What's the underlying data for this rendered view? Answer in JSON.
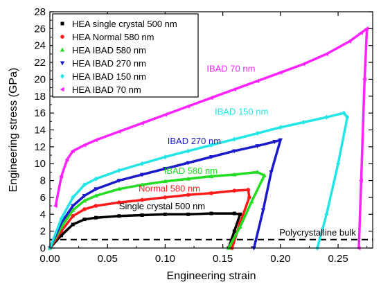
{
  "chart_data": {
    "type": "line",
    "xlabel": "Engineering strain",
    "ylabel": "Engineering stress (GPa)",
    "xlim": [
      0,
      0.28
    ],
    "ylim": [
      0,
      28
    ],
    "xticks": [
      0.0,
      0.05,
      0.1,
      0.15,
      0.2,
      0.25
    ],
    "xtick_labels": [
      "0.00",
      "0.05",
      "0.10",
      "0.15",
      "0.20",
      "0.25"
    ],
    "yticks": [
      0,
      2,
      4,
      6,
      8,
      10,
      12,
      14,
      16,
      18,
      20,
      22,
      24,
      26,
      28
    ],
    "ytick_labels": [
      "0",
      "2",
      "4",
      "6",
      "8",
      "10",
      "12",
      "14",
      "16",
      "18",
      "20",
      "22",
      "24",
      "26",
      "28"
    ],
    "legend_position": "top-left",
    "series": [
      {
        "name": "HEA single crystal 500 nm",
        "color": "#000000",
        "marker": "square",
        "annotation": "Single crystal 500 nm",
        "x": [
          0.0,
          0.01,
          0.02,
          0.03,
          0.04,
          0.06,
          0.08,
          0.1,
          0.12,
          0.14,
          0.16,
          0.165,
          0.16,
          0.155
        ],
        "y": [
          0.0,
          1.5,
          2.8,
          3.4,
          3.6,
          3.8,
          3.9,
          4.0,
          4.0,
          4.1,
          4.1,
          4.0,
          2.0,
          0.0
        ]
      },
      {
        "name": "HEA Normal 580 nm",
        "color": "#ff1a1a",
        "marker": "circle",
        "annotation": "Normal 580 nm",
        "x": [
          0.0,
          0.01,
          0.02,
          0.03,
          0.04,
          0.06,
          0.08,
          0.1,
          0.12,
          0.14,
          0.16,
          0.172,
          0.173,
          0.165,
          0.158
        ],
        "y": [
          0.0,
          2.0,
          3.8,
          4.6,
          5.0,
          5.4,
          5.7,
          6.0,
          6.3,
          6.5,
          6.8,
          6.9,
          6.0,
          3.0,
          0.0
        ]
      },
      {
        "name": "HEA IBAD 580 nm",
        "color": "#22dd22",
        "marker": "triangle-up",
        "annotation": "IBAD 580 nm",
        "x": [
          0.0,
          0.01,
          0.02,
          0.03,
          0.04,
          0.06,
          0.08,
          0.1,
          0.12,
          0.14,
          0.16,
          0.18,
          0.186,
          0.175,
          0.165,
          0.155
        ],
        "y": [
          0.0,
          2.5,
          4.5,
          5.6,
          6.2,
          7.0,
          7.5,
          7.9,
          8.2,
          8.5,
          8.7,
          9.0,
          8.6,
          5.5,
          2.5,
          0.0
        ]
      },
      {
        "name": "HEA IBAD 270 nm",
        "color": "#1a1acc",
        "marker": "triangle-down",
        "annotation": "IBAD 270 nm",
        "x": [
          0.0,
          0.01,
          0.02,
          0.03,
          0.04,
          0.06,
          0.08,
          0.1,
          0.12,
          0.14,
          0.16,
          0.18,
          0.195,
          0.2,
          0.192,
          0.185,
          0.177
        ],
        "y": [
          0.0,
          3.0,
          5.0,
          6.2,
          7.0,
          8.0,
          8.7,
          9.4,
          10.1,
          10.8,
          11.5,
          12.1,
          12.6,
          12.8,
          9.0,
          4.5,
          0.0
        ]
      },
      {
        "name": "HEA IBAD 150 nm",
        "color": "#22e5e5",
        "marker": "diamond",
        "annotation": "IBAD 150 nm",
        "x": [
          0.0,
          0.01,
          0.02,
          0.03,
          0.04,
          0.06,
          0.08,
          0.1,
          0.12,
          0.14,
          0.16,
          0.18,
          0.2,
          0.22,
          0.24,
          0.255,
          0.258,
          0.25,
          0.24,
          0.232
        ],
        "y": [
          0.0,
          3.5,
          6.0,
          7.5,
          8.2,
          9.2,
          10.0,
          10.8,
          11.5,
          12.2,
          12.9,
          13.6,
          14.3,
          14.9,
          15.5,
          16.0,
          15.5,
          10.0,
          4.0,
          0.0
        ]
      },
      {
        "name": "HEA IBAD 70 nm",
        "color": "#ff22ff",
        "marker": "triangle-left",
        "annotation": "IBAD 70 nm",
        "x": [
          0.005,
          0.01,
          0.015,
          0.02,
          0.03,
          0.04,
          0.06,
          0.08,
          0.1,
          0.12,
          0.14,
          0.16,
          0.18,
          0.2,
          0.22,
          0.24,
          0.26,
          0.27,
          0.275,
          0.273,
          0.27,
          0.268
        ],
        "y": [
          5.0,
          8.5,
          10.5,
          11.5,
          12.2,
          12.8,
          13.8,
          14.8,
          15.8,
          16.8,
          17.8,
          18.8,
          19.8,
          20.8,
          21.8,
          23.0,
          24.5,
          25.5,
          26.0,
          20.0,
          8.0,
          0.0
        ]
      }
    ],
    "reference_line": {
      "label": "Polycrystalline bulk",
      "y": 1.0,
      "style": "dashed",
      "color": "#000000"
    }
  }
}
